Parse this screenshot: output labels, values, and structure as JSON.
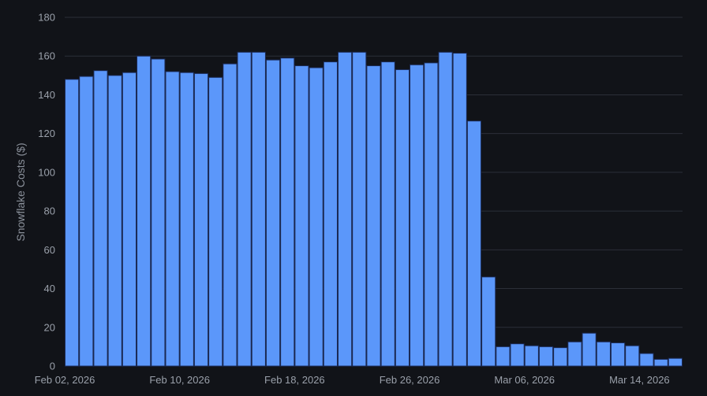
{
  "chart_data": {
    "type": "bar",
    "title": "",
    "xlabel": "",
    "ylabel": "Snowflake Costs ($)",
    "ylim": [
      0,
      180
    ],
    "y_ticks": [
      0,
      20,
      40,
      60,
      80,
      100,
      120,
      140,
      160,
      180
    ],
    "x_tick_labels": [
      "Feb 02, 2026",
      "Feb 10, 2026",
      "Feb 18, 2026",
      "Feb 26, 2026",
      "Mar 06, 2026",
      "Mar 14, 2026"
    ],
    "x_tick_dates": [
      "2026-02-02",
      "2026-02-10",
      "2026-02-18",
      "2026-02-26",
      "2026-03-06",
      "2026-03-14"
    ],
    "grid": true,
    "bar_color": "#5b97fa",
    "background": "#111318",
    "categories": [
      "2026-02-02",
      "2026-02-03",
      "2026-02-04",
      "2026-02-05",
      "2026-02-06",
      "2026-02-07",
      "2026-02-08",
      "2026-02-09",
      "2026-02-10",
      "2026-02-11",
      "2026-02-12",
      "2026-02-13",
      "2026-02-14",
      "2026-02-15",
      "2026-02-16",
      "2026-02-17",
      "2026-02-18",
      "2026-02-19",
      "2026-02-20",
      "2026-02-21",
      "2026-02-22",
      "2026-02-23",
      "2026-02-24",
      "2026-02-25",
      "2026-02-26",
      "2026-02-27",
      "2026-02-28",
      "2026-03-01",
      "2026-03-02",
      "2026-03-03",
      "2026-03-04",
      "2026-03-05",
      "2026-03-06",
      "2026-03-07",
      "2026-03-08",
      "2026-03-09",
      "2026-03-10",
      "2026-03-11",
      "2026-03-12",
      "2026-03-13",
      "2026-03-14",
      "2026-03-15",
      "2026-03-16"
    ],
    "values": [
      148,
      149.5,
      152.5,
      150,
      151.5,
      160,
      158.5,
      152,
      151.5,
      151,
      149,
      156,
      162,
      162,
      158,
      159,
      155,
      154,
      157,
      162,
      162,
      155,
      157,
      153,
      155.5,
      156.5,
      162,
      161.5,
      126.5,
      46,
      10,
      11.5,
      10.5,
      10,
      9.5,
      12.5,
      17,
      12.5,
      12,
      10.5,
      6.5,
      3.5,
      4
    ]
  }
}
